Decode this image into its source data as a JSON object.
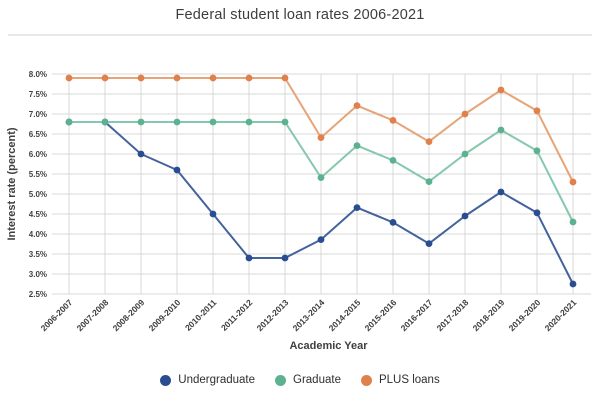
{
  "header": {
    "title": "Federal student loan rates 2006-2021"
  },
  "chart_data": {
    "type": "line",
    "title": "Federal student loan rates 2006-2021",
    "xlabel": "Academic Year",
    "ylabel": "Interest rate (percent)",
    "ymin": 2.5,
    "ymax": 8.0,
    "ystep": 0.5,
    "ytick_labels": [
      "2.5%",
      "3.0%",
      "3.5%",
      "4.0%",
      "4.5%",
      "5.0%",
      "5.5%",
      "6.0%",
      "6.5%",
      "7.0%",
      "7.5%",
      "8.0%"
    ],
    "grid": true,
    "legend_position": "bottom",
    "categories": [
      "2006-2007",
      "2007-2008",
      "2008-2009",
      "2009-2010",
      "2010-2011",
      "2011-2012",
      "2012-2013",
      "2013-2014",
      "2014-2015",
      "2015-2016",
      "2016-2017",
      "2017-2018",
      "2018-2019",
      "2019-2020",
      "2020-2021"
    ],
    "series": [
      {
        "name": "Undergraduate",
        "line_color": "#44639c",
        "dot_color": "#2a4c90",
        "values": [
          6.8,
          6.8,
          6.0,
          5.6,
          4.5,
          3.4,
          3.4,
          3.86,
          4.66,
          4.29,
          3.76,
          4.45,
          5.05,
          4.53,
          2.75
        ]
      },
      {
        "name": "Graduate",
        "line_color": "#84c9ad",
        "dot_color": "#5cb191",
        "values": [
          6.8,
          6.8,
          6.8,
          6.8,
          6.8,
          6.8,
          6.8,
          5.41,
          6.21,
          5.84,
          5.31,
          6.0,
          6.6,
          6.08,
          4.3
        ]
      },
      {
        "name": "PLUS loans",
        "line_color": "#e6a477",
        "dot_color": "#df814a",
        "values": [
          7.9,
          7.9,
          7.9,
          7.9,
          7.9,
          7.9,
          7.9,
          6.41,
          7.21,
          6.84,
          6.31,
          7.0,
          7.6,
          7.08,
          5.3
        ]
      }
    ]
  },
  "colors": {
    "background": "#ffffff",
    "grid": "#d8d8d8",
    "axis_text": "#3f3f3f",
    "title_text": "#3d3d3d",
    "divider": "#e9e9e9",
    "legend_text": "#2f2f2f"
  }
}
